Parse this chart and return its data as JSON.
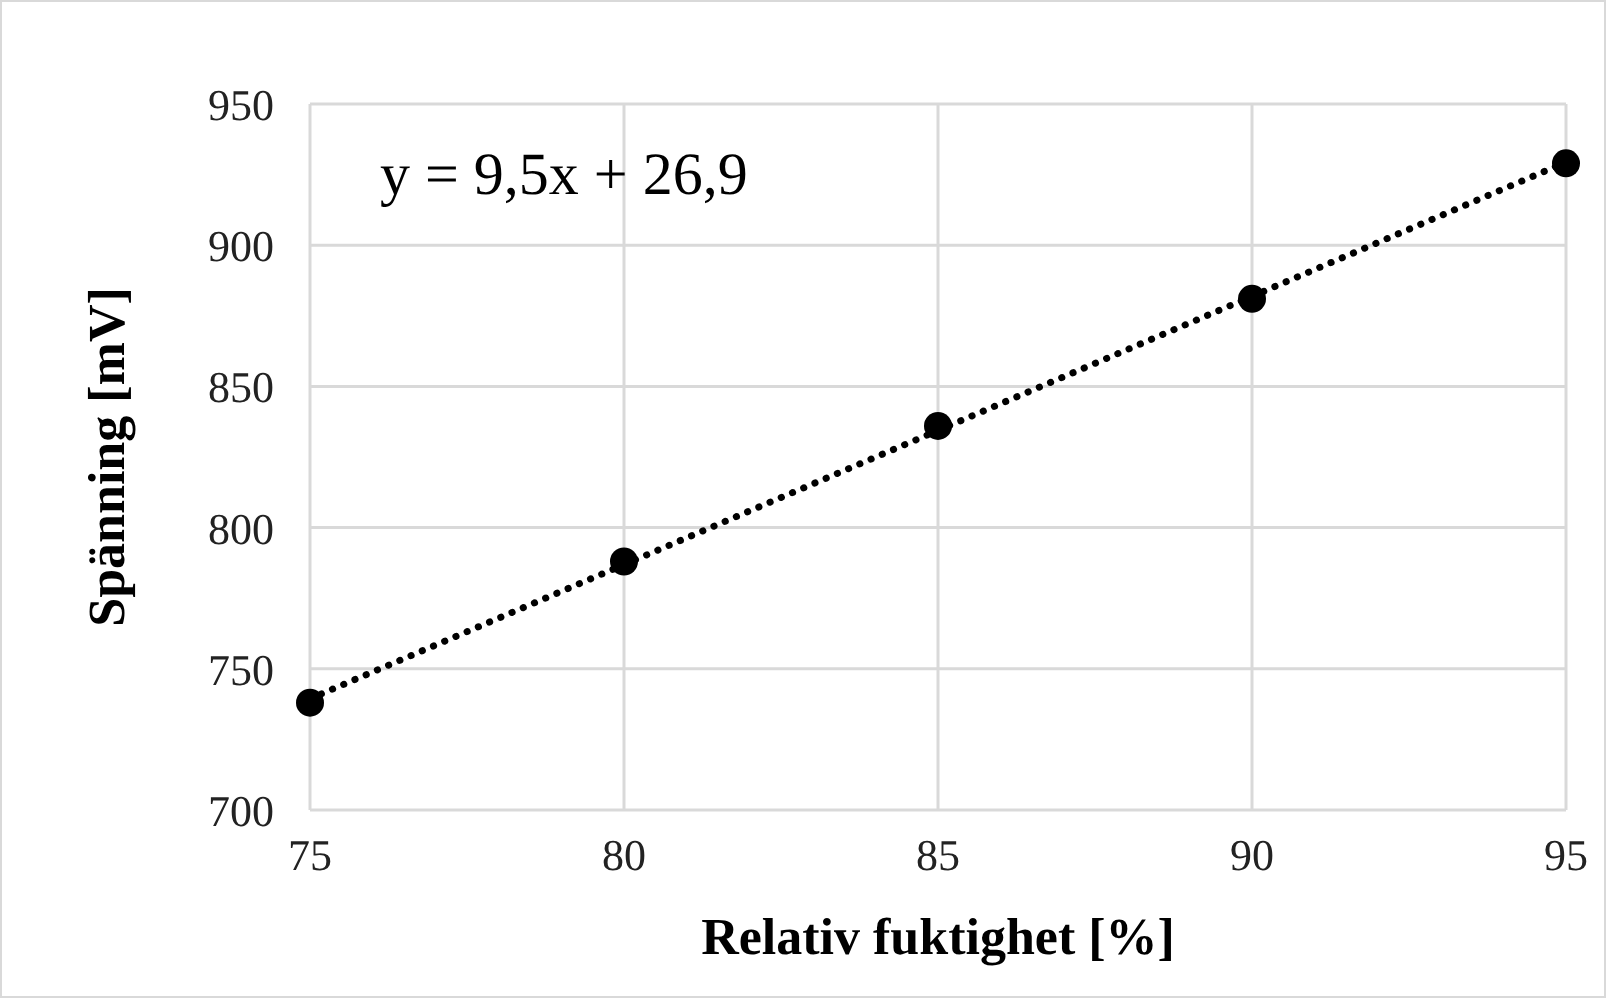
{
  "chart_data": {
    "type": "scatter",
    "xlabel": "Relativ fuktighet [%]",
    "ylabel": "Spänning [mV]",
    "xlim": [
      75,
      95
    ],
    "xticks": [
      75,
      80,
      85,
      90,
      95
    ],
    "ylim": [
      700,
      950
    ],
    "yticks": [
      700,
      750,
      800,
      850,
      900,
      950
    ],
    "grid": true,
    "marker": "circle",
    "annotations": [
      "y = 9,5x + 26,9"
    ],
    "series": [
      {
        "color": "#000000",
        "x": [
          75,
          80,
          85,
          90,
          95
        ],
        "values": [
          738,
          788,
          836,
          881,
          929
        ]
      },
      {
        "type": "line",
        "color": "#000000",
        "marker": "none",
        "line_style": "dotted",
        "x": [
          75,
          95
        ],
        "values": [
          739.4,
          929.4
        ]
      }
    ]
  }
}
